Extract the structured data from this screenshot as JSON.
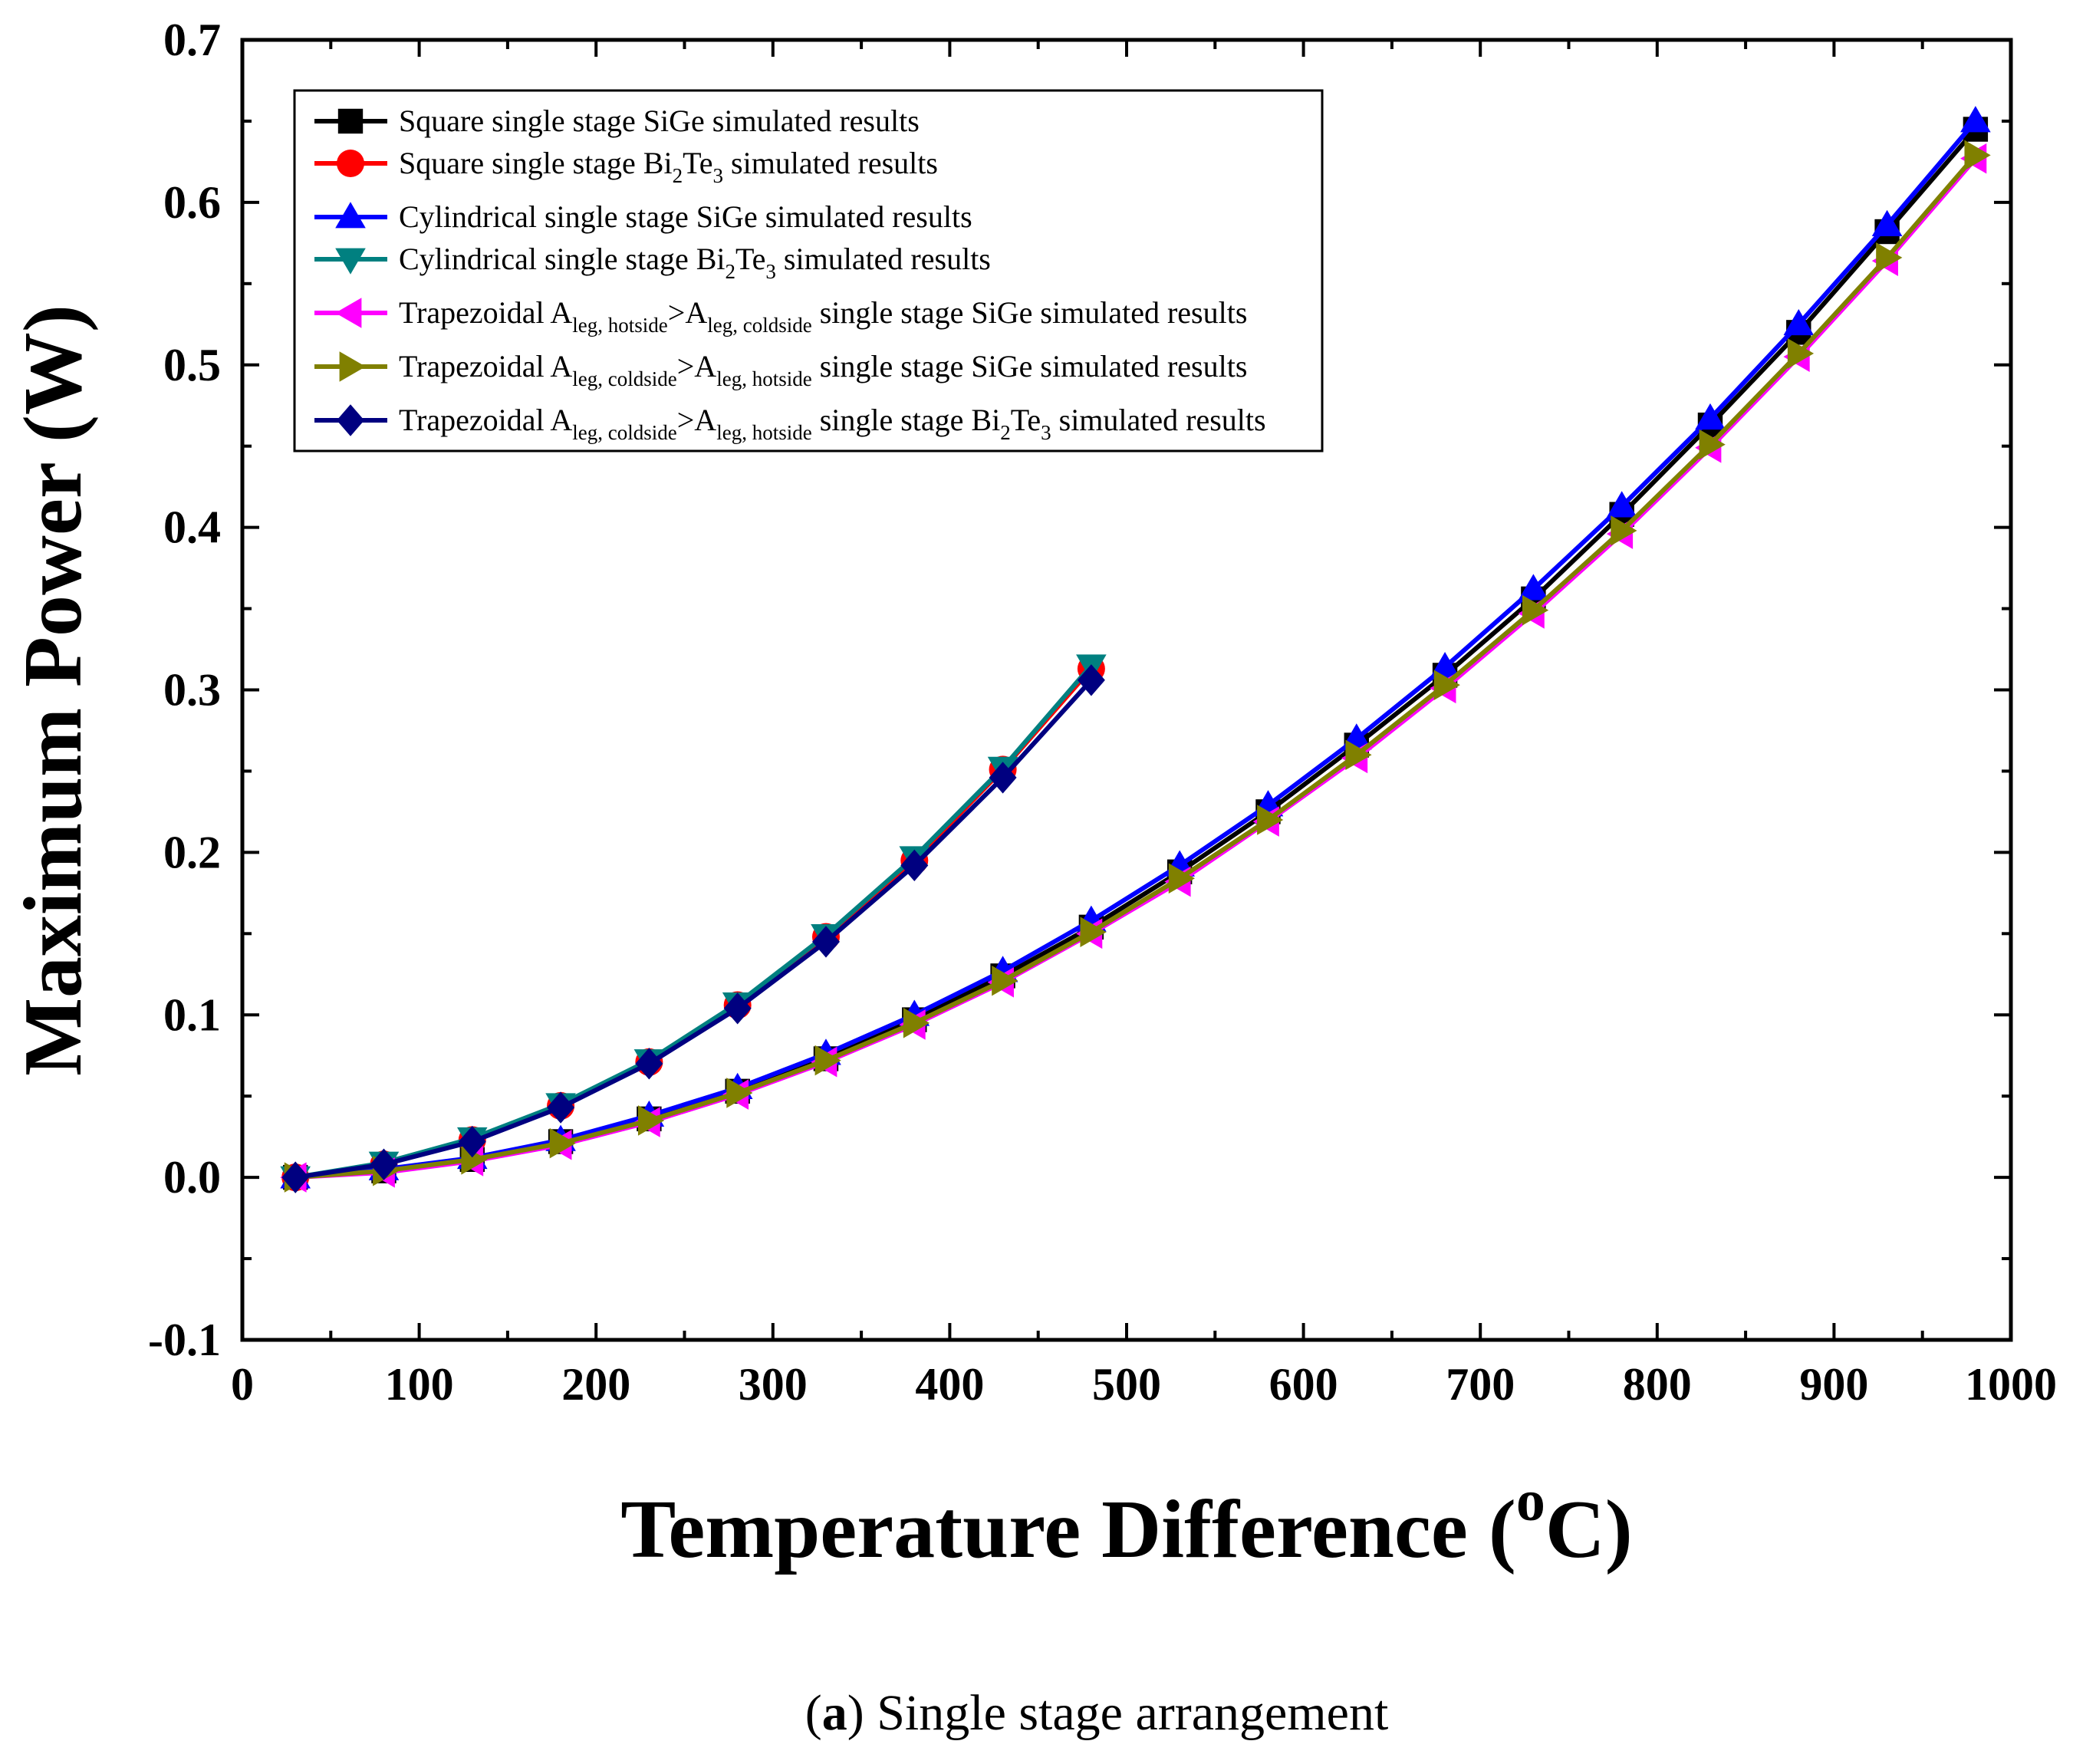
{
  "chart_data": {
    "type": "line",
    "xlabel": "Temperature Difference (",
    "xlabel_sup": "o",
    "xlabel_unit": "C)",
    "ylabel": "Maximum Power (W)",
    "xlim": [
      0,
      1000
    ],
    "ylim": [
      -0.1,
      0.7
    ],
    "xticks": [
      0,
      100,
      200,
      300,
      400,
      500,
      600,
      700,
      800,
      900,
      1000
    ],
    "xtick_labels": [
      "0",
      "100",
      "200",
      "300",
      "400",
      "500",
      "600",
      "700",
      "800",
      "900",
      "1000"
    ],
    "yticks": [
      -0.1,
      0.0,
      0.1,
      0.2,
      0.3,
      0.4,
      0.5,
      0.6,
      0.7
    ],
    "ytick_labels": [
      "-0.1",
      "0.0",
      "0.1",
      "0.2",
      "0.3",
      "0.4",
      "0.5",
      "0.6",
      "0.7"
    ],
    "grid": false,
    "legend_position": "top-left",
    "series": [
      {
        "name": "Square single stage SiGe simulated results",
        "legend_parts": [
          "Square single stage SiGe simulated results"
        ],
        "color": "#000000",
        "marker": "square",
        "x": [
          30,
          80,
          130,
          180,
          230,
          280,
          330,
          380,
          430,
          480,
          530,
          580,
          630,
          680,
          730,
          780,
          830,
          880,
          930,
          980
        ],
        "y": [
          0.0,
          0.004,
          0.011,
          0.022,
          0.036,
          0.053,
          0.073,
          0.097,
          0.124,
          0.154,
          0.188,
          0.225,
          0.266,
          0.309,
          0.356,
          0.408,
          0.463,
          0.52,
          0.582,
          0.645
        ]
      },
      {
        "name": "Square single stage Bi2Te3 simulated results",
        "legend_parts": [
          "Square single stage Bi",
          "2",
          "Te",
          "3",
          " simulated results"
        ],
        "color": "#ff0000",
        "marker": "circle",
        "x": [
          30,
          80,
          130,
          180,
          230,
          280,
          330,
          380,
          430,
          480
        ],
        "y": [
          0.0,
          0.008,
          0.023,
          0.044,
          0.071,
          0.106,
          0.148,
          0.195,
          0.251,
          0.313
        ]
      },
      {
        "name": "Cylindrical single stage SiGe simulated results",
        "legend_parts": [
          "Cylindrical single stage SiGe simulated results"
        ],
        "color": "#0000ff",
        "marker": "triangle-up",
        "x": [
          30,
          80,
          130,
          180,
          230,
          280,
          330,
          380,
          430,
          480,
          530,
          580,
          630,
          680,
          730,
          780,
          830,
          880,
          930,
          980
        ],
        "y": [
          0.0,
          0.005,
          0.012,
          0.023,
          0.038,
          0.055,
          0.076,
          0.1,
          0.127,
          0.158,
          0.192,
          0.229,
          0.27,
          0.314,
          0.362,
          0.413,
          0.467,
          0.525,
          0.586,
          0.65
        ]
      },
      {
        "name": "Cylindrical single stage Bi2Te3 simulated results",
        "legend_parts": [
          "Cylindrical single stage Bi",
          "2",
          "Te",
          "3",
          " simulated results"
        ],
        "color": "#008080",
        "marker": "triangle-down",
        "x": [
          30,
          80,
          130,
          180,
          230,
          280,
          330,
          380,
          430,
          480
        ],
        "y": [
          0.0,
          0.009,
          0.024,
          0.045,
          0.072,
          0.107,
          0.149,
          0.197,
          0.252,
          0.315
        ]
      },
      {
        "name": "Trapezoidal Aleg, hotside>Aleg, coldside single stage SiGe simulated results",
        "legend_parts": [
          "Trapezoidal A",
          "leg, hotside",
          ">A",
          "leg, coldside",
          " single stage SiGe simulated results"
        ],
        "color": "#ff00ff",
        "marker": "triangle-left",
        "x": [
          30,
          80,
          130,
          180,
          230,
          280,
          330,
          380,
          430,
          480,
          530,
          580,
          630,
          680,
          730,
          780,
          830,
          880,
          930,
          980
        ],
        "y": [
          0.0,
          0.003,
          0.01,
          0.02,
          0.034,
          0.051,
          0.071,
          0.094,
          0.12,
          0.15,
          0.182,
          0.219,
          0.258,
          0.301,
          0.347,
          0.396,
          0.449,
          0.505,
          0.564,
          0.627
        ]
      },
      {
        "name": "Trapezoidal Aleg, coldside>Aleg, hotside single stage SiGe simulated results",
        "legend_parts": [
          "Trapezoidal A",
          "leg, coldside",
          ">A",
          "leg, hotside",
          " single stage SiGe simulated results"
        ],
        "color": "#808000",
        "marker": "triangle-right",
        "x": [
          30,
          80,
          130,
          180,
          230,
          280,
          330,
          380,
          430,
          480,
          530,
          580,
          630,
          680,
          730,
          780,
          830,
          880,
          930,
          980
        ],
        "y": [
          0.0,
          0.004,
          0.011,
          0.021,
          0.035,
          0.052,
          0.072,
          0.095,
          0.121,
          0.151,
          0.184,
          0.22,
          0.26,
          0.303,
          0.349,
          0.398,
          0.451,
          0.507,
          0.566,
          0.629
        ]
      },
      {
        "name": "Trapezoidal Aleg, coldside>Aleg, hotside single stage Bi2Te3 simulated results",
        "legend_parts": [
          "Trapezoidal A",
          "leg, coldside",
          ">A",
          "leg, hotside",
          " single stage Bi",
          "2",
          "Te",
          "3",
          " simulated results"
        ],
        "color": "#000080",
        "marker": "diamond",
        "x": [
          30,
          80,
          130,
          180,
          230,
          280,
          330,
          380,
          430,
          480
        ],
        "y": [
          0.0,
          0.008,
          0.022,
          0.043,
          0.07,
          0.104,
          0.145,
          0.192,
          0.246,
          0.306
        ]
      }
    ]
  },
  "caption": {
    "letter": "a",
    "text": " Single stage arrangement"
  }
}
